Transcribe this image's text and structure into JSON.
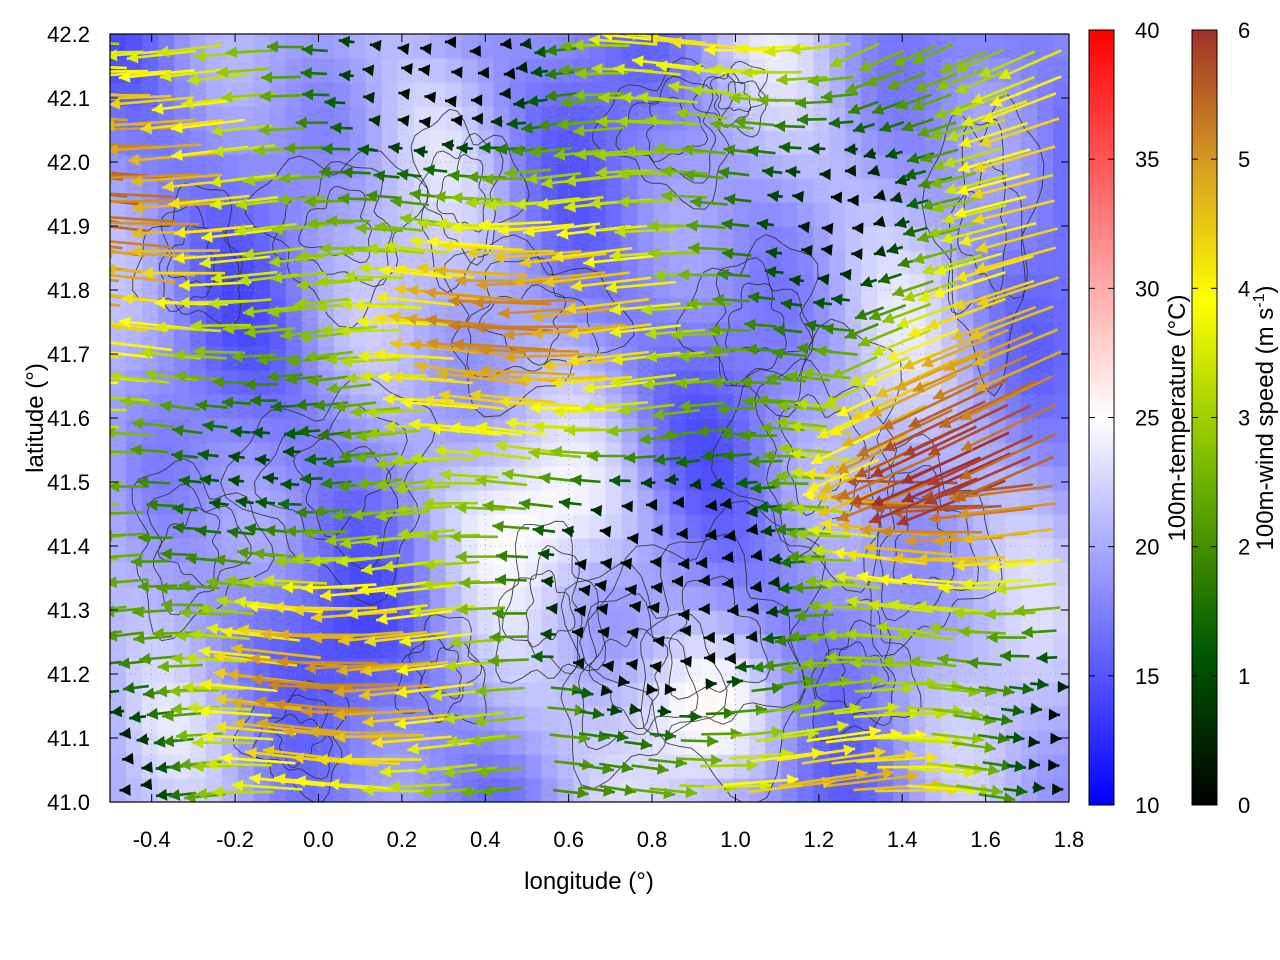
{
  "chart_data": {
    "type": "heatmap",
    "title": "",
    "xlabel": "longitude (°)",
    "ylabel": "latitude (°)",
    "xlim": [
      -0.5,
      1.8
    ],
    "ylim": [
      41.0,
      42.2
    ],
    "xticks": [
      "-0.4",
      "-0.2",
      "0.0",
      "0.2",
      "0.4",
      "0.6",
      "0.8",
      "1.0",
      "1.2",
      "1.4",
      "1.6",
      "1.8"
    ],
    "yticks": [
      "41.0",
      "41.1",
      "41.2",
      "41.3",
      "41.4",
      "41.5",
      "41.6",
      "41.7",
      "41.8",
      "41.9",
      "42.0",
      "42.1",
      "42.2"
    ],
    "grid": true,
    "layers": [
      {
        "kind": "color-field",
        "variable": "100m-temperature",
        "description_in_legend": "100m-temperature (°C)"
      },
      {
        "kind": "wind-vectors",
        "variable": "100m-wind speed"
      },
      {
        "kind": "contours",
        "color": "#000000"
      }
    ],
    "colorbars": [
      {
        "label_main": "100m-temperature (°C)",
        "range": [
          10,
          40
        ],
        "ticks": [
          "10",
          "15",
          "20",
          "25",
          "30",
          "35",
          "40"
        ],
        "colors": [
          "#0000ff",
          "#ffffff",
          "#ff0000"
        ]
      },
      {
        "label_main": "100m-wind speed (m s",
        "label_sup": "-1",
        "label_end": ")",
        "range": [
          0,
          6
        ],
        "ticks": [
          "0",
          "1",
          "2",
          "3",
          "4",
          "5",
          "6"
        ],
        "colors": [
          "#000000",
          "#006400",
          "#7fbf00",
          "#ffff00",
          "#e0a020",
          "#a0302a"
        ]
      }
    ],
    "field_summary": {
      "temperature_typical_range": [
        16,
        24
      ],
      "wind_speed_range": [
        0,
        6
      ],
      "dominant_wind_direction": "westward (easterly flow) in west and center, eastward in southeast",
      "strong_wind_zones": [
        "west coast band 41.5–42.0 lat",
        "northeast corner",
        "southwest corner"
      ]
    }
  }
}
